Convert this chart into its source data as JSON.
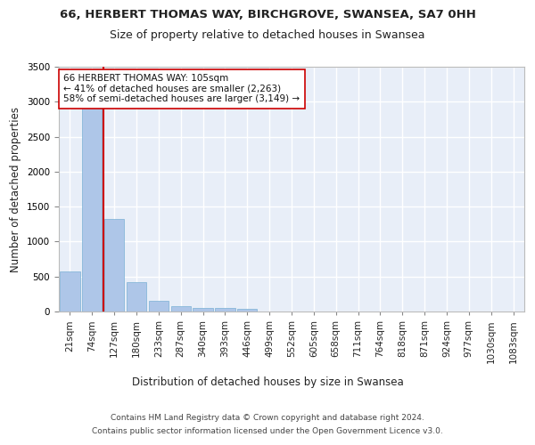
{
  "title_line1": "66, HERBERT THOMAS WAY, BIRCHGROVE, SWANSEA, SA7 0HH",
  "title_line2": "Size of property relative to detached houses in Swansea",
  "xlabel": "Distribution of detached houses by size in Swansea",
  "ylabel": "Number of detached properties",
  "categories": [
    "21sqm",
    "74sqm",
    "127sqm",
    "180sqm",
    "233sqm",
    "287sqm",
    "340sqm",
    "393sqm",
    "446sqm",
    "499sqm",
    "552sqm",
    "605sqm",
    "658sqm",
    "711sqm",
    "764sqm",
    "818sqm",
    "871sqm",
    "924sqm",
    "977sqm",
    "1030sqm",
    "1083sqm"
  ],
  "bar_heights": [
    575,
    2920,
    1320,
    415,
    155,
    80,
    55,
    45,
    40,
    0,
    0,
    0,
    0,
    0,
    0,
    0,
    0,
    0,
    0,
    0,
    0
  ],
  "bar_color": "#aec6e8",
  "bar_edge_color": "#7ab0d4",
  "vline_color": "#cc0000",
  "ylim": [
    0,
    3500
  ],
  "yticks": [
    0,
    500,
    1000,
    1500,
    2000,
    2500,
    3000,
    3500
  ],
  "annotation_text": "66 HERBERT THOMAS WAY: 105sqm\n← 41% of detached houses are smaller (2,263)\n58% of semi-detached houses are larger (3,149) →",
  "annotation_box_color": "#ffffff",
  "annotation_box_edge": "#cc0000",
  "footer_line1": "Contains HM Land Registry data © Crown copyright and database right 2024.",
  "footer_line2": "Contains public sector information licensed under the Open Government Licence v3.0.",
  "bg_color": "#e8eef8",
  "grid_color": "#ffffff",
  "title_fontsize": 9.5,
  "subtitle_fontsize": 9,
  "axis_label_fontsize": 8.5,
  "tick_fontsize": 7.5,
  "annotation_fontsize": 7.5,
  "footer_fontsize": 6.5
}
